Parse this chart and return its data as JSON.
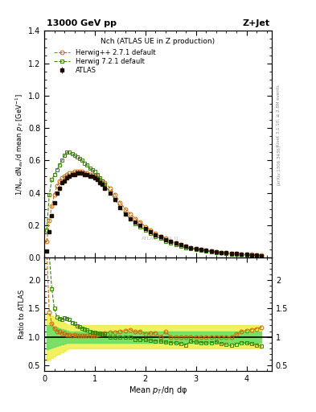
{
  "title_left": "13000 GeV pp",
  "title_right": "Z+Jet",
  "plot_title": "Nch (ATLAS UE in Z production)",
  "xlabel": "Mean $p_T$/dη dφ",
  "ylabel_main": "1/N$_{ev}$ dN$_{ev}$/d mean $p_T$ [GeV$^{-1}$]",
  "ylabel_ratio": "Ratio to ATLAS",
  "right_label_top": "Rivet 3.1.10, ≥ 2.8M events",
  "right_label_bot": "[arXiv:1306.3436]",
  "watermark": "ATLAS_2019_I1...",
  "atlas_x": [
    0.05,
    0.1,
    0.15,
    0.2,
    0.25,
    0.3,
    0.35,
    0.4,
    0.45,
    0.5,
    0.55,
    0.6,
    0.65,
    0.7,
    0.75,
    0.8,
    0.85,
    0.9,
    0.95,
    1.0,
    1.05,
    1.1,
    1.15,
    1.2,
    1.3,
    1.4,
    1.5,
    1.6,
    1.7,
    1.8,
    1.9,
    2.0,
    2.1,
    2.2,
    2.3,
    2.4,
    2.5,
    2.6,
    2.7,
    2.8,
    2.9,
    3.0,
    3.1,
    3.2,
    3.3,
    3.4,
    3.5,
    3.6,
    3.7,
    3.8,
    3.9,
    4.0,
    4.1,
    4.2,
    4.3
  ],
  "atlas_y": [
    0.04,
    0.16,
    0.26,
    0.34,
    0.4,
    0.43,
    0.46,
    0.47,
    0.49,
    0.5,
    0.51,
    0.51,
    0.52,
    0.52,
    0.52,
    0.51,
    0.51,
    0.5,
    0.5,
    0.49,
    0.48,
    0.46,
    0.45,
    0.43,
    0.4,
    0.36,
    0.31,
    0.27,
    0.24,
    0.22,
    0.2,
    0.18,
    0.16,
    0.14,
    0.13,
    0.11,
    0.1,
    0.09,
    0.08,
    0.07,
    0.06,
    0.055,
    0.05,
    0.045,
    0.04,
    0.035,
    0.032,
    0.029,
    0.026,
    0.023,
    0.02,
    0.018,
    0.016,
    0.014,
    0.012
  ],
  "atlas_yerr": [
    0.005,
    0.008,
    0.008,
    0.008,
    0.008,
    0.008,
    0.008,
    0.008,
    0.008,
    0.008,
    0.008,
    0.008,
    0.008,
    0.008,
    0.008,
    0.008,
    0.008,
    0.008,
    0.008,
    0.008,
    0.008,
    0.008,
    0.008,
    0.008,
    0.007,
    0.007,
    0.006,
    0.006,
    0.005,
    0.005,
    0.005,
    0.004,
    0.004,
    0.004,
    0.003,
    0.003,
    0.003,
    0.003,
    0.002,
    0.002,
    0.002,
    0.002,
    0.002,
    0.002,
    0.002,
    0.002,
    0.001,
    0.001,
    0.001,
    0.001,
    0.001,
    0.001,
    0.001,
    0.001,
    0.001
  ],
  "herwig1_x": [
    0.05,
    0.1,
    0.15,
    0.2,
    0.25,
    0.3,
    0.35,
    0.4,
    0.45,
    0.5,
    0.55,
    0.6,
    0.65,
    0.7,
    0.75,
    0.8,
    0.85,
    0.9,
    0.95,
    1.0,
    1.05,
    1.1,
    1.15,
    1.2,
    1.3,
    1.4,
    1.5,
    1.6,
    1.7,
    1.8,
    1.9,
    2.0,
    2.1,
    2.2,
    2.3,
    2.4,
    2.5,
    2.6,
    2.7,
    2.8,
    2.9,
    3.0,
    3.1,
    3.2,
    3.3,
    3.4,
    3.5,
    3.6,
    3.7,
    3.8,
    3.9,
    4.0,
    4.1,
    4.2,
    4.3
  ],
  "herwig1_y": [
    0.1,
    0.23,
    0.32,
    0.39,
    0.44,
    0.47,
    0.49,
    0.5,
    0.51,
    0.52,
    0.52,
    0.53,
    0.53,
    0.53,
    0.53,
    0.52,
    0.52,
    0.51,
    0.51,
    0.5,
    0.5,
    0.48,
    0.47,
    0.46,
    0.43,
    0.39,
    0.34,
    0.3,
    0.27,
    0.24,
    0.22,
    0.19,
    0.17,
    0.15,
    0.13,
    0.12,
    0.1,
    0.09,
    0.08,
    0.07,
    0.06,
    0.055,
    0.05,
    0.045,
    0.04,
    0.035,
    0.032,
    0.029,
    0.026,
    0.024,
    0.022,
    0.02,
    0.018,
    0.016,
    0.014
  ],
  "herwig2_x": [
    0.05,
    0.1,
    0.15,
    0.2,
    0.25,
    0.3,
    0.35,
    0.4,
    0.45,
    0.5,
    0.55,
    0.6,
    0.65,
    0.7,
    0.75,
    0.8,
    0.85,
    0.9,
    0.95,
    1.0,
    1.05,
    1.1,
    1.15,
    1.2,
    1.3,
    1.4,
    1.5,
    1.6,
    1.7,
    1.8,
    1.9,
    2.0,
    2.1,
    2.2,
    2.3,
    2.4,
    2.5,
    2.6,
    2.7,
    2.8,
    2.9,
    3.0,
    3.1,
    3.2,
    3.3,
    3.4,
    3.5,
    3.6,
    3.7,
    3.8,
    3.9,
    4.0,
    4.1,
    4.2,
    4.3
  ],
  "herwig2_y": [
    0.17,
    0.39,
    0.48,
    0.51,
    0.54,
    0.57,
    0.6,
    0.63,
    0.65,
    0.65,
    0.64,
    0.63,
    0.62,
    0.61,
    0.6,
    0.58,
    0.57,
    0.55,
    0.54,
    0.53,
    0.51,
    0.49,
    0.47,
    0.45,
    0.4,
    0.36,
    0.31,
    0.27,
    0.24,
    0.21,
    0.19,
    0.17,
    0.15,
    0.13,
    0.12,
    0.1,
    0.09,
    0.08,
    0.07,
    0.06,
    0.055,
    0.05,
    0.045,
    0.04,
    0.036,
    0.032,
    0.028,
    0.025,
    0.022,
    0.02,
    0.018,
    0.016,
    0.014,
    0.012,
    0.01
  ],
  "ylim_main": [
    0,
    1.4
  ],
  "ylim_ratio": [
    0.4,
    2.4
  ],
  "xlim": [
    0,
    4.5
  ],
  "yticks_main": [
    0,
    0.2,
    0.4,
    0.6,
    0.8,
    1.0,
    1.2,
    1.4
  ],
  "yticks_ratio": [
    0.5,
    1.0,
    1.5,
    2.0
  ],
  "xticks": [
    0,
    1,
    2,
    3,
    4
  ],
  "atlas_color": "#1a0d00",
  "herwig1_color": "#cc6600",
  "herwig2_color": "#338800",
  "band_color_green": "#66dd66",
  "band_color_yellow": "#eeee44"
}
